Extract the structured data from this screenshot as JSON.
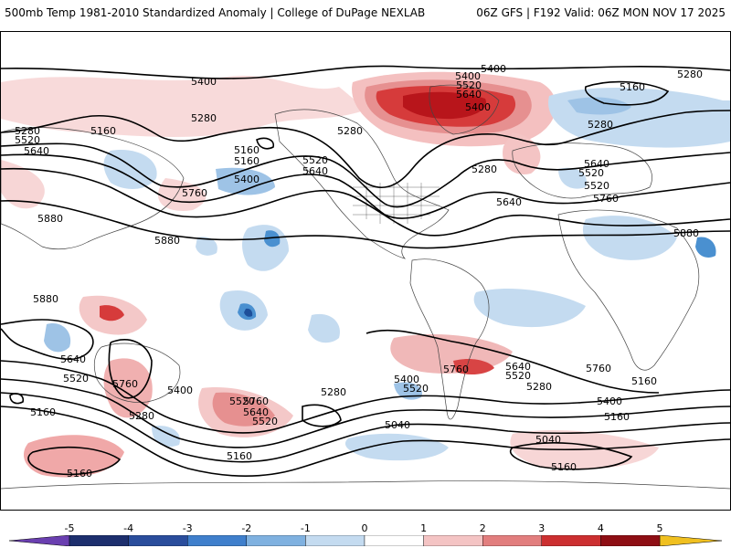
{
  "header": {
    "title_left": "500mb Temp 1981-2010 Standardized Anomaly | College of DuPage NEXLAB",
    "title_right": "06Z GFS | F192 Valid: 06Z MON NOV 17 2025"
  },
  "colors": {
    "background": "#ffffff",
    "contour": "#000000",
    "coastline": "#444444",
    "anom_pos_1": "#f7d0d0",
    "anom_pos_2": "#ea9494",
    "anom_pos_3": "#d63b3b",
    "anom_pos_4": "#b8151b",
    "anom_neg_1": "#d5e3f3",
    "anom_neg_2": "#9ec3e6",
    "anom_neg_3": "#4a90d0",
    "anom_neg_4": "#1d4f9a"
  },
  "contour_labels": [
    "5400",
    "5400",
    "5280",
    "5520",
    "5640",
    "5400",
    "5160",
    "5400",
    "5280",
    "5160",
    "5280",
    "5520",
    "5640",
    "5160",
    "5280",
    "5520",
    "5280",
    "5160",
    "5400",
    "5520",
    "5640",
    "5640",
    "5760",
    "5280",
    "5520",
    "5640",
    "5880",
    "5880",
    "5760",
    "5880",
    "5880",
    "5640",
    "5520",
    "5760",
    "5400",
    "5520",
    "5160",
    "5280",
    "5760",
    "5640",
    "5520",
    "5280",
    "5160",
    "5400",
    "5520",
    "5760",
    "5640",
    "5520",
    "5280",
    "5400",
    "5160",
    "5040",
    "5040",
    "5760",
    "5160",
    "5160",
    "5160"
  ],
  "colorbar": {
    "ticks": [
      "-5",
      "-4",
      "-3",
      "-2",
      "-1",
      "0",
      "1",
      "2",
      "3",
      "4",
      "5"
    ],
    "colors": [
      "#1d2f6e",
      "#2a4d9c",
      "#3f7fcc",
      "#7fb1e0",
      "#c4dbf0",
      "#ffffff",
      "#ffffff",
      "#f4c4c4",
      "#e27e7e",
      "#cc2f30",
      "#8e0e14"
    ],
    "low_cap": "#6a3fb0",
    "high_cap": "#f0c020"
  }
}
